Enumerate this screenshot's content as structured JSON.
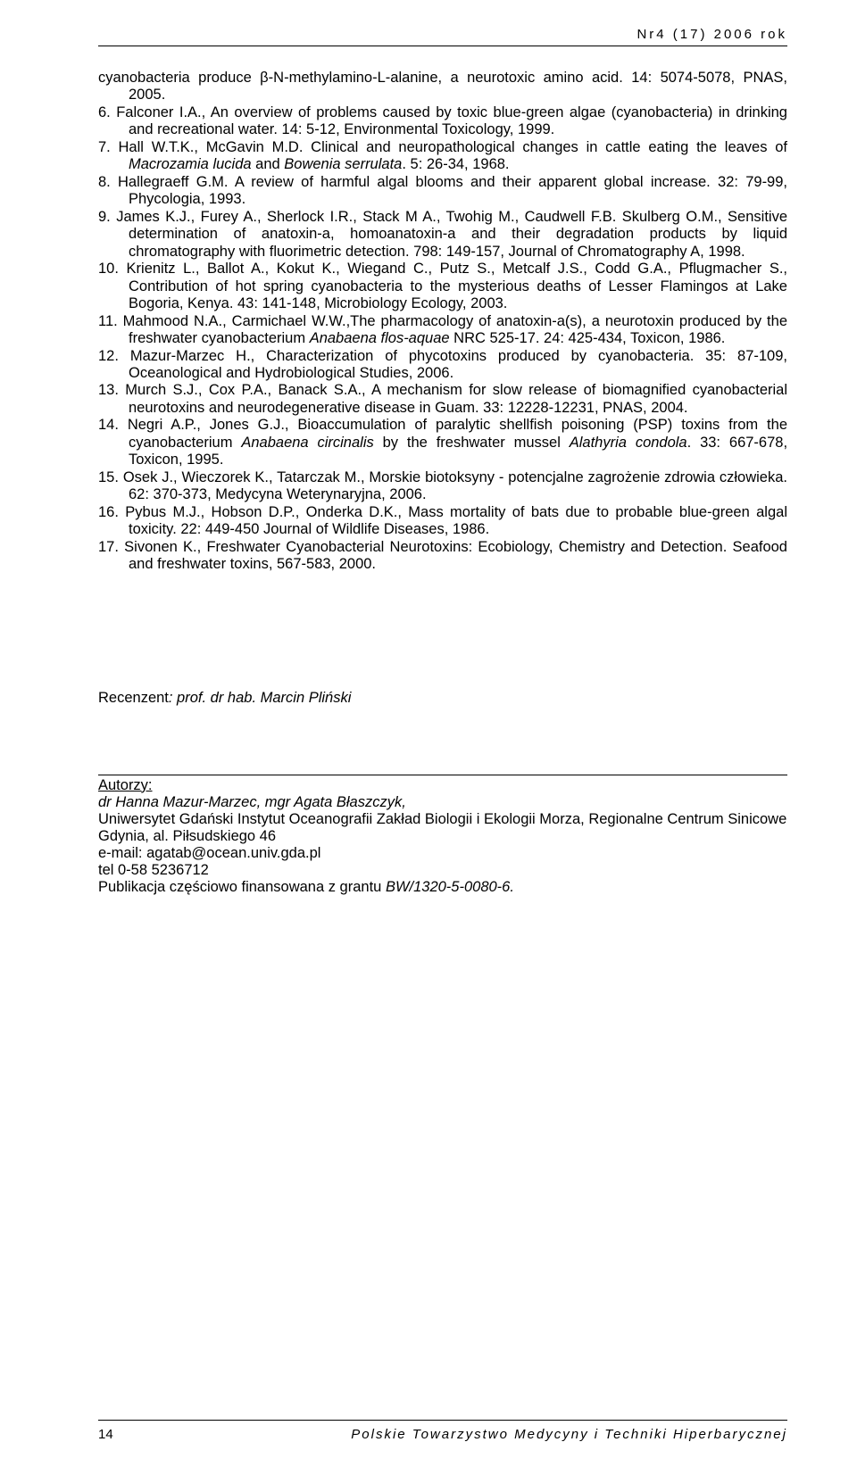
{
  "header": "Nr4  (17)  2006  rok",
  "refs": [
    {
      "num": "",
      "html": "cyanobacteria produce β-N-methylamino-L-alanine, a neurotoxic amino acid. 14: 5074-5078, PNAS, 2005."
    },
    {
      "num": "6.",
      "html": "Falconer I.A., An overview of problems caused by toxic blue-green algae (cyanobacteria) in drinking and recreational water. 14: 5-12, Environmental Toxicology, 1999."
    },
    {
      "num": "7.",
      "html": "Hall W.T.K., McGavin M.D. Clinical and neuropathological changes in cattle eating the leaves of <span class=\"italic\">Macrozamia lucida</span> and <span class=\"italic\">Bowenia serrulata</span>. 5: 26-34, 1968."
    },
    {
      "num": "8.",
      "html": "Hallegraeff G.M. A review of harmful algal blooms and their apparent global increase. 32: 79-99, Phycologia, 1993."
    },
    {
      "num": "9.",
      "html": "James K.J., Furey A., Sherlock I.R., Stack M A., Twohig M., Caudwell F.B. Skulberg O.M., Sensitive determination of anatoxin-a, homoanatoxin-a and their degradation products by liquid chromatography with fluorimetric detection. 798: 149-157, Journal of Chromatography A, 1998."
    },
    {
      "num": "10.",
      "html": "Krienitz L., Ballot A., Kokut K., Wiegand C., Putz S., Metcalf J.S., Codd G.A., Pflugmacher S., Contribution of hot spring cyanobacteria to the mysterious deaths of Lesser Flamingos at Lake Bogoria, Kenya. 43: 141-148, Microbiology Ecology, 2003."
    },
    {
      "num": "11.",
      "html": "Mahmood N.A., Carmichael W.W.,The pharmacology of anatoxin-a(s), a neurotoxin produced by the freshwater cyanobacterium <span class=\"italic\">Anabaena flos-aquae</span> NRC 525-17. 24: 425-434, Toxicon, 1986."
    },
    {
      "num": "12.",
      "html": "Mazur-Marzec H., Characterization of phycotoxins produced by cyanobacteria. 35: 87-109, Oceanological and Hydrobiological Studies, 2006."
    },
    {
      "num": "13.",
      "html": "Murch S.J., Cox P.A., Banack S.A., A mechanism for slow release of biomagnified cyanobacterial neurotoxins and neurodegenerative disease in Guam. 33: 12228-12231, PNAS, 2004."
    },
    {
      "num": "14.",
      "html": "Negri A.P., Jones G.J., Bioaccumulation of paralytic shellfish poisoning (PSP) toxins from the cyanobacterium <span class=\"italic\">Anabaena circinalis</span> by the freshwater mussel <span class=\"italic\">Alathyria condola</span>. 33: 667-678, Toxicon, 1995."
    },
    {
      "num": "15.",
      "html": "Osek J., Wieczorek K., Tatarczak M., Morskie biotoksyny - potencjalne zagrożenie zdrowia człowieka. 62: 370-373, Medycyna Weterynaryjna, 2006."
    },
    {
      "num": "16.",
      "html": "Pybus M.J., Hobson D.P., Onderka D.K., Mass mortality of bats due to probable blue-green algal toxicity. 22: 449-450 Journal of Wildlife Diseases, 1986."
    },
    {
      "num": "17.",
      "html": "Sivonen K., Freshwater Cyanobacterial Neurotoxins: Ecobiology, Chemistry and Detection. Seafood and freshwater toxins, 567-583, 2000."
    }
  ],
  "reviewer_label": "Recenzent",
  "reviewer_name": ": prof. dr hab. Marcin Pliński",
  "authors": {
    "heading": "Autorzy:",
    "names": "dr Hanna Mazur-Marzec, mgr Agata Błaszczyk,",
    "affil": "Uniwersytet Gdański Instytut Oceanografii Zakład Biologii i Ekologii Morza, Regionalne Centrum Sinicowe",
    "addr": "Gdynia, al. Piłsudskiego 46",
    "email": "e-mail: agatab@ocean.univ.gda.pl",
    "tel": "tel 0-58 5236712",
    "funding": "Publikacja częściowo finansowana z grantu ",
    "grant": "BW/1320-5-0080-6."
  },
  "footer_page": "14",
  "footer_text": "Polskie Towarzystwo Medycyny i Techniki Hiperbarycznej"
}
